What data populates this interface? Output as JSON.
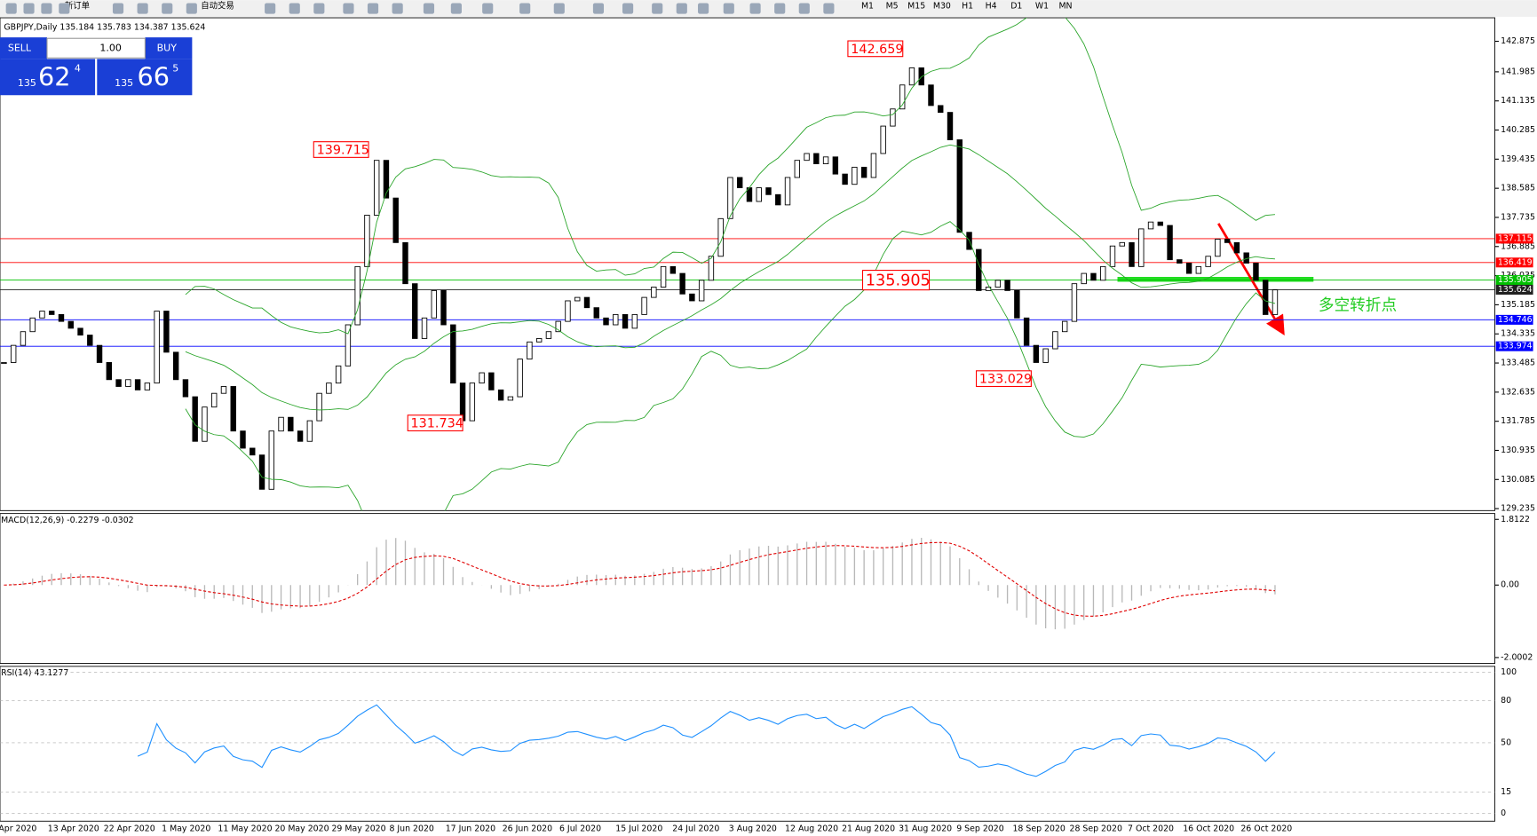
{
  "toolbar": {
    "new_order": "新订单",
    "auto_trading": "自动交易",
    "timeframes": [
      "M1",
      "M5",
      "M15",
      "M30",
      "H1",
      "H4",
      "D1",
      "W1",
      "MN"
    ]
  },
  "order_panel": {
    "sell": "SELL",
    "lots": "1.00",
    "buy": "BUY",
    "bid_big": "135",
    "bid_mid": "62",
    "bid_small": "4",
    "ask_big": "135",
    "ask_mid": "66",
    "ask_small": "5"
  },
  "chart": {
    "header": "GBPJPY,Daily  135.184 135.783 134.387 135.624",
    "price_ticks": [
      142.875,
      141.985,
      141.135,
      140.285,
      139.435,
      138.585,
      137.735,
      136.885,
      136.035,
      135.185,
      134.335,
      133.485,
      132.635,
      131.785,
      130.935,
      130.085,
      129.235
    ],
    "levels": [
      {
        "value": 137.115,
        "color": "#ff0000"
      },
      {
        "value": 136.419,
        "color": "#ff0000"
      },
      {
        "value": 135.905,
        "color": "#00c000"
      },
      {
        "value": 135.624,
        "color": "#202020"
      },
      {
        "value": 134.746,
        "color": "#0000ff"
      },
      {
        "value": 133.974,
        "color": "#0000ff"
      }
    ],
    "annotations": [
      142.659,
      139.715,
      131.734,
      135.905,
      133.029
    ],
    "note": "多空转折点",
    "prices": [
      133.5,
      134.0,
      134.4,
      134.8,
      135.0,
      134.9,
      134.7,
      134.5,
      134.3,
      134.0,
      133.5,
      133.0,
      132.8,
      133.0,
      132.7,
      132.9,
      135.0,
      133.8,
      133.0,
      132.5,
      131.2,
      132.2,
      132.6,
      132.8,
      131.5,
      131.0,
      130.8,
      129.8,
      131.5,
      131.9,
      131.5,
      131.2,
      131.8,
      132.6,
      132.9,
      133.4,
      134.6,
      136.3,
      137.8,
      139.4,
      138.3,
      137.0,
      135.8,
      134.2,
      134.8,
      135.6,
      134.6,
      132.9,
      131.8,
      132.9,
      133.2,
      132.7,
      132.4,
      132.5,
      133.6,
      134.1,
      134.2,
      134.4,
      134.7,
      135.3,
      135.4,
      135.1,
      134.8,
      134.6,
      134.9,
      134.5,
      134.9,
      135.4,
      135.7,
      136.3,
      136.1,
      135.5,
      135.3,
      135.9,
      136.6,
      137.7,
      138.9,
      138.6,
      138.2,
      138.6,
      138.4,
      138.1,
      138.9,
      139.4,
      139.6,
      139.3,
      139.5,
      139.0,
      138.7,
      139.2,
      138.9,
      139.6,
      140.4,
      140.9,
      141.6,
      142.1,
      141.6,
      141.0,
      140.8,
      140.0,
      137.3,
      136.8,
      135.6,
      135.7,
      135.9,
      135.6,
      134.8,
      134.0,
      133.5,
      133.9,
      134.4,
      134.7,
      135.8,
      136.1,
      135.9,
      136.3,
      136.9,
      137.0,
      136.3,
      137.4,
      137.6,
      137.5,
      136.5,
      136.4,
      136.1,
      136.3,
      136.6,
      137.1,
      137.0,
      136.7,
      136.4,
      135.9,
      134.9,
      135.62
    ],
    "dates": [
      "Apr 2020",
      "13 Apr 2020",
      "22 Apr 2020",
      "1 May 2020",
      "11 May 2020",
      "20 May 2020",
      "29 May 2020",
      "8 Jun 2020",
      "17 Jun 2020",
      "26 Jun 2020",
      "6 Jul 2020",
      "15 Jul 2020",
      "24 Jul 2020",
      "3 Aug 2020",
      "12 Aug 2020",
      "21 Aug 2020",
      "31 Aug 2020",
      "9 Sep 2020",
      "18 Sep 2020",
      "28 Sep 2020",
      "7 Oct 2020",
      "16 Oct 2020",
      "26 Oct 2020"
    ]
  },
  "macd": {
    "label": "MACD(12,26,9) -0.2279 -0.0302",
    "ticks": [
      1.8122,
      {
        "value": 0,
        "label": "0.00"
      },
      -2.0002
    ]
  },
  "rsi": {
    "label": "RSI(14) 43.1277",
    "ticks": [
      100,
      80,
      50,
      15,
      0
    ]
  }
}
